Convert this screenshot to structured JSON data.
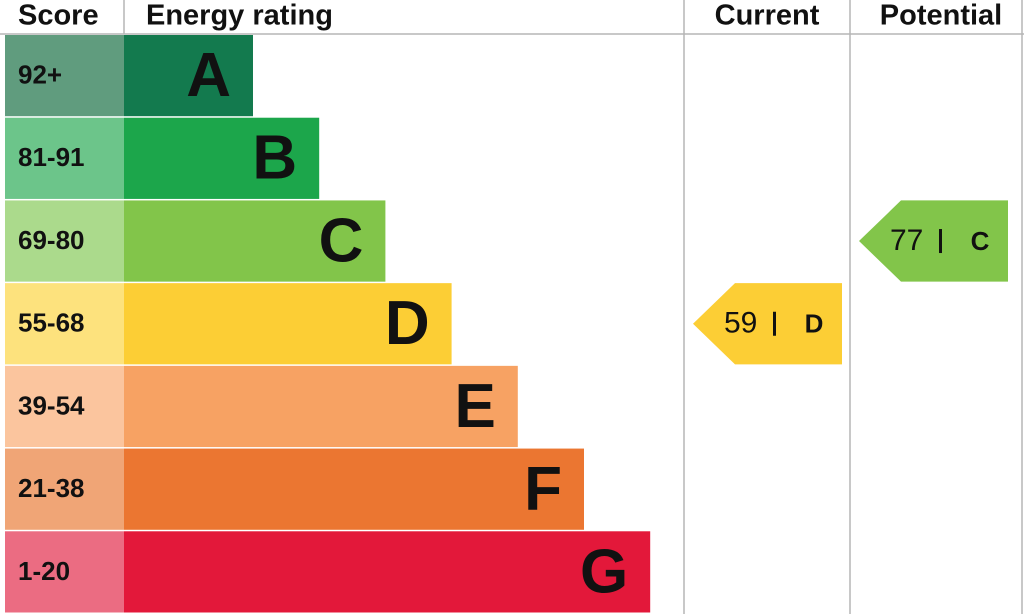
{
  "header": {
    "score": "Score",
    "rating": "Energy rating",
    "current": "Current",
    "potential": "Potential"
  },
  "bands": [
    {
      "score": "92+",
      "letter": "A",
      "color": "#137a4e",
      "score_color": "#609c7e"
    },
    {
      "score": "81-91",
      "letter": "B",
      "color": "#1ca64b",
      "score_color": "#6cc58a"
    },
    {
      "score": "69-80",
      "letter": "C",
      "color": "#82c54a",
      "score_color": "#abda8c"
    },
    {
      "score": "55-68",
      "letter": "D",
      "color": "#fcce35",
      "score_color": "#fde27d"
    },
    {
      "score": "39-54",
      "letter": "E",
      "color": "#f7a263",
      "score_color": "#fbc59e"
    },
    {
      "score": "21-38",
      "letter": "F",
      "color": "#eb7631",
      "score_color": "#f0a576"
    },
    {
      "score": "1-20",
      "letter": "G",
      "color": "#e3183a",
      "score_color": "#eb6c82"
    }
  ],
  "current": {
    "value": 59,
    "letter": "D"
  },
  "potential": {
    "value": 77,
    "letter": "C"
  }
}
